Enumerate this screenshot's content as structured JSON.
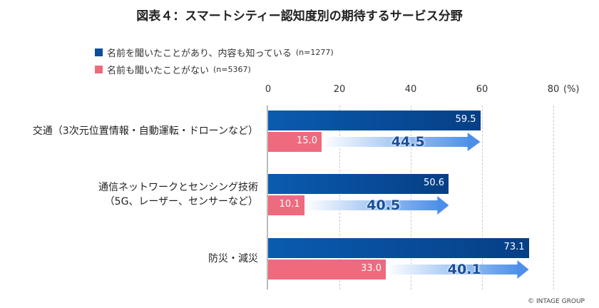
{
  "chart_data": {
    "type": "bar",
    "title": "図表４：スマートシティー認知度別の期待するサービス分野",
    "categories": [
      [
        "交通（3次元位置情報・自動運転・ドローンなど）"
      ],
      [
        "通信ネットワークとセンシング技術",
        "（5G、レーザー、センサーなど）"
      ],
      [
        "防災・減災"
      ]
    ],
    "series": [
      {
        "name": "名前を聞いたことがあり、内容も知っている",
        "n": "(n=1277)",
        "color": "#0a4f9a",
        "values": [
          "59.5",
          "50.6",
          "73.1"
        ]
      },
      {
        "name": "名前も聞いたことがない",
        "n": "(n=5367)",
        "color": "#f06a7d",
        "values": [
          "15.0",
          "10.1",
          "33.0"
        ]
      }
    ],
    "differences": [
      "44.5",
      "40.5",
      "40.1"
    ],
    "xticks": [
      "0",
      "20",
      "40",
      "60",
      "80"
    ],
    "unit": "(%)",
    "xlim": [
      0,
      80
    ],
    "legend": "top-left",
    "grid": true
  },
  "copyright": "© INTAGE GROUP"
}
